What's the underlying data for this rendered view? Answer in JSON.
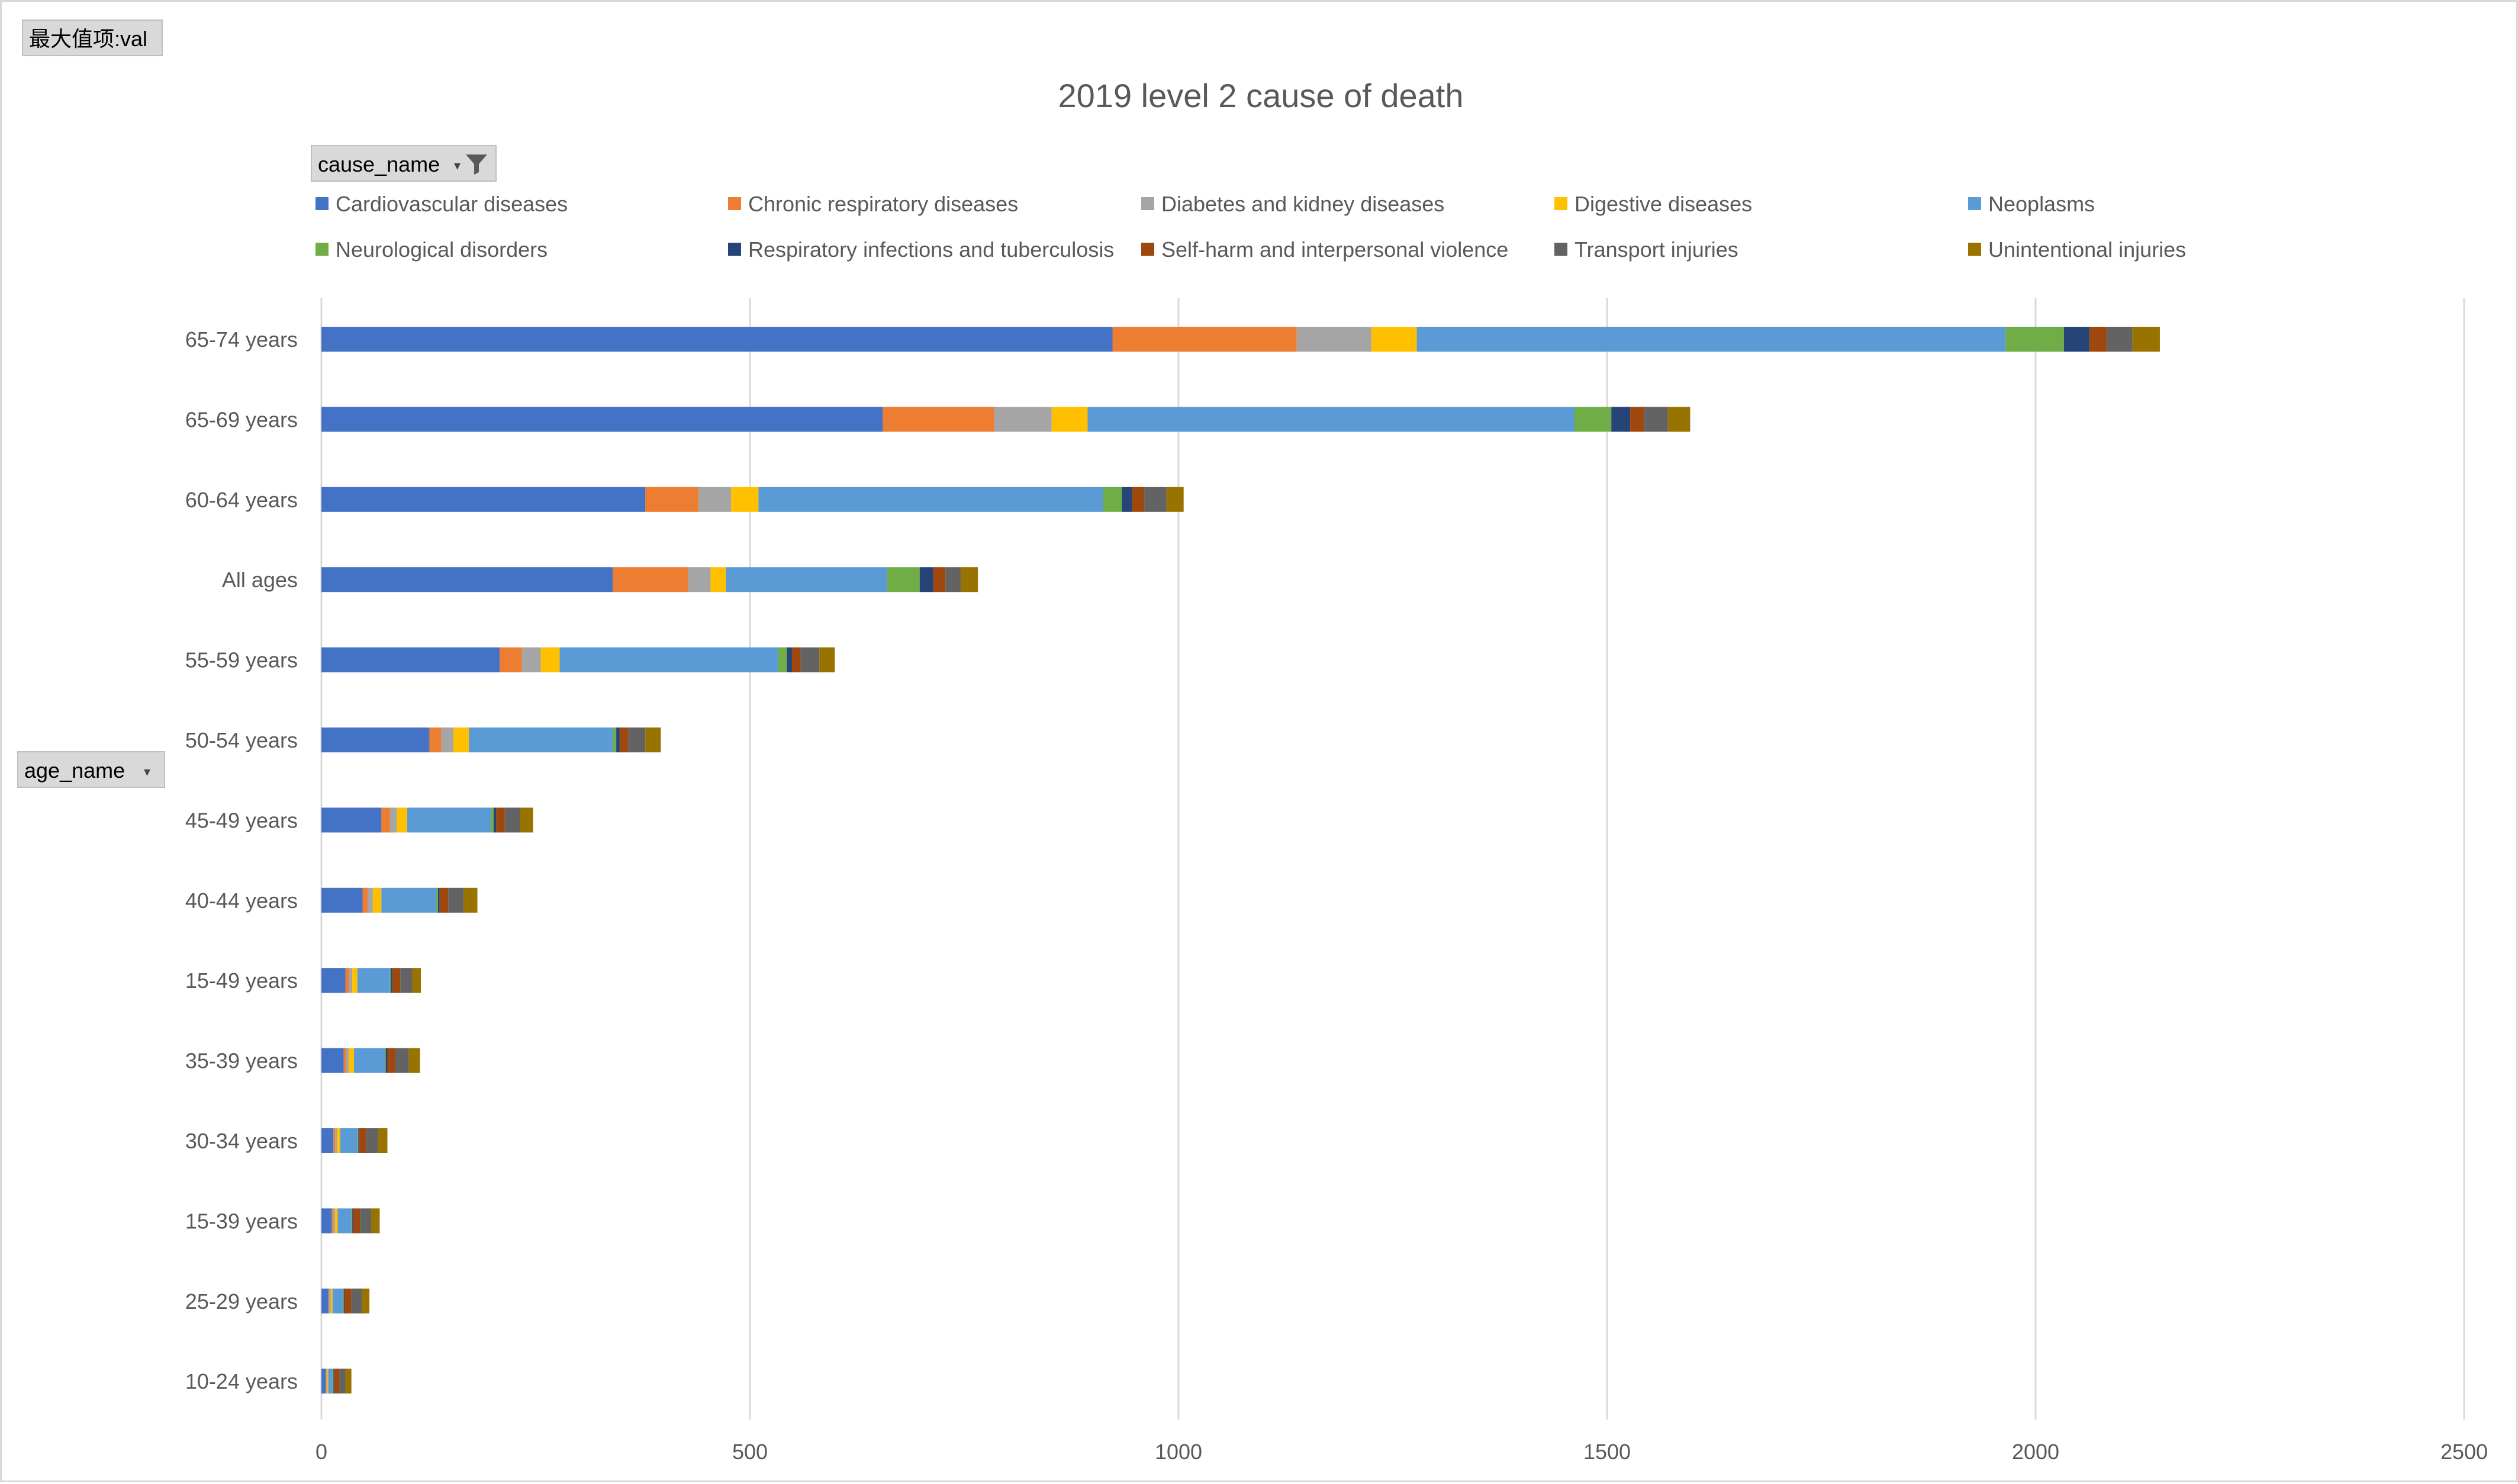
{
  "value_field": {
    "label": "最大值项:val"
  },
  "filters": {
    "cause_field": {
      "label": "cause_name",
      "icon": "filter-icon"
    },
    "age_field": {
      "label": "age_name",
      "icon": "dropdown-icon"
    }
  },
  "colors": {
    "Cardiovascular diseases": "#4472c4",
    "Chronic respiratory diseases": "#ed7d31",
    "Diabetes and kidney diseases": "#a5a5a5",
    "Digestive diseases": "#ffc000",
    "Neoplasms": "#5b9bd5",
    "Neurological disorders": "#70ad47",
    "Respiratory infections and tuberculosis": "#264478",
    "Self-harm and interpersonal violence": "#9e480e",
    "Transport injuries": "#636363",
    "Unintentional injuries": "#997300",
    "gridline": "#d9d9d9",
    "text": "#595959"
  },
  "chart_data": {
    "type": "bar",
    "orientation": "horizontal",
    "stacked": true,
    "title": "2019 level 2 cause of death",
    "xlabel": "",
    "ylabel": "",
    "xlim": [
      0,
      2500
    ],
    "xticks": [
      "0",
      "500",
      "1000",
      "1500",
      "2000",
      "2500"
    ],
    "grid": true,
    "legend_position": "top",
    "categories": [
      "65-74 years",
      "65-69 years",
      "60-64 years",
      "All ages",
      "55-59 years",
      "50-54 years",
      "45-49 years",
      "40-44 years",
      "15-49 years",
      "35-39 years",
      "30-34 years",
      "15-39 years",
      "25-29 years",
      "10-24 years"
    ],
    "series": [
      {
        "name": "Cardiovascular diseases",
        "values": [
          923,
          655,
          378,
          340,
          208,
          126,
          70,
          48,
          28,
          26,
          14,
          12,
          8,
          5
        ]
      },
      {
        "name": "Chronic respiratory diseases",
        "values": [
          215,
          130,
          62,
          88,
          26,
          14,
          10,
          6,
          4,
          3,
          2,
          2,
          1,
          1
        ]
      },
      {
        "name": "Diabetes and kidney diseases",
        "values": [
          87,
          67,
          38,
          26,
          22,
          14,
          8,
          6,
          4,
          3,
          2,
          2,
          2,
          1
        ]
      },
      {
        "name": "Digestive diseases",
        "values": [
          53,
          42,
          32,
          18,
          22,
          18,
          12,
          10,
          6,
          6,
          4,
          3,
          2,
          1
        ]
      },
      {
        "name": "Neoplasms",
        "values": [
          687,
          568,
          402,
          188,
          255,
          168,
          98,
          64,
          38,
          36,
          20,
          16,
          12,
          5
        ]
      },
      {
        "name": "Neurological disorders",
        "values": [
          68,
          43,
          22,
          38,
          10,
          4,
          3,
          2,
          1,
          1,
          1,
          1,
          1,
          1
        ]
      },
      {
        "name": "Respiratory infections and tuberculosis",
        "values": [
          30,
          22,
          12,
          16,
          6,
          4,
          3,
          2,
          2,
          2,
          1,
          1,
          1,
          1
        ]
      },
      {
        "name": "Self-harm and interpersonal violence",
        "values": [
          20,
          16,
          14,
          14,
          10,
          10,
          10,
          10,
          9,
          9,
          8,
          8,
          8,
          6
        ]
      },
      {
        "name": "Transport injuries",
        "values": [
          30,
          28,
          26,
          18,
          22,
          20,
          18,
          18,
          14,
          16,
          14,
          13,
          12,
          7
        ]
      },
      {
        "name": "Unintentional injuries",
        "values": [
          32,
          26,
          20,
          20,
          18,
          18,
          15,
          16,
          10,
          13,
          11,
          10,
          9,
          7
        ]
      }
    ]
  }
}
